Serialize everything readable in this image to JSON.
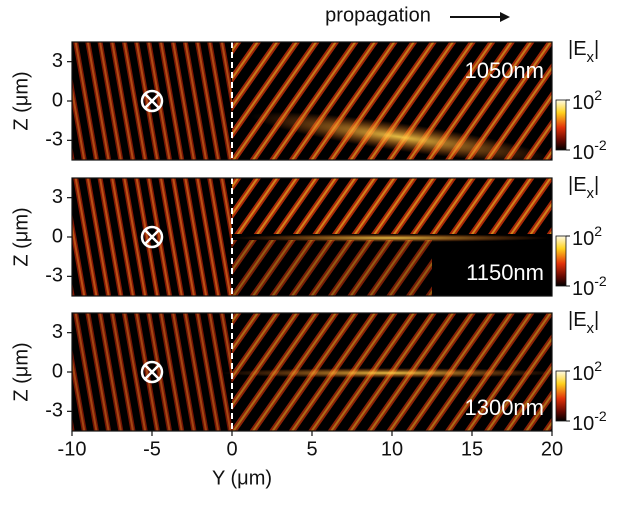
{
  "figure_title": "propagation",
  "chart_data": [
    {
      "type": "field",
      "annotation": "1050nm",
      "annotation_position": "top-right",
      "ylabel": "Z (μm)",
      "xlim": [
        -10,
        20
      ],
      "ylim": [
        -4.5,
        4.5
      ],
      "yticks": [
        3,
        0,
        -3
      ],
      "vline": 0,
      "colorbar_label": [
        "|E",
        "x",
        "|"
      ],
      "colorbar_scale": "log",
      "clim": [
        0.01,
        100
      ],
      "colorbar_ticks": [
        {
          "value": 100,
          "label": "10",
          "exponent": "2"
        },
        {
          "value": 0.01,
          "label": "10",
          "exponent": "-2"
        }
      ]
    },
    {
      "type": "field",
      "annotation": "1150nm",
      "annotation_position": "bottom-right",
      "ylabel": "Z (μm)",
      "xlim": [
        -10,
        20
      ],
      "ylim": [
        -4.5,
        4.5
      ],
      "yticks": [
        3,
        0,
        -3
      ],
      "vline": 0,
      "colorbar_label": [
        "|E",
        "x",
        "|"
      ],
      "colorbar_scale": "log",
      "clim": [
        0.01,
        100
      ],
      "colorbar_ticks": [
        {
          "value": 100,
          "label": "10",
          "exponent": "2"
        },
        {
          "value": 0.01,
          "label": "10",
          "exponent": "-2"
        }
      ]
    },
    {
      "type": "field",
      "annotation": "1300nm",
      "annotation_position": "bottom-right",
      "ylabel": "Z (μm)",
      "xlabel": "Y (μm)",
      "xlim": [
        -10,
        20
      ],
      "xticks": [
        -10,
        -5,
        0,
        5,
        10,
        15,
        20
      ],
      "ylim": [
        -4.5,
        4.5
      ],
      "yticks": [
        3,
        0,
        -3
      ],
      "vline": 0,
      "colorbar_label": [
        "|E",
        "x",
        "|"
      ],
      "colorbar_scale": "log",
      "clim": [
        0.01,
        100
      ],
      "colorbar_ticks": [
        {
          "value": 100,
          "label": "10",
          "exponent": "2"
        },
        {
          "value": 0.01,
          "label": "10",
          "exponent": "-2"
        }
      ]
    }
  ]
}
